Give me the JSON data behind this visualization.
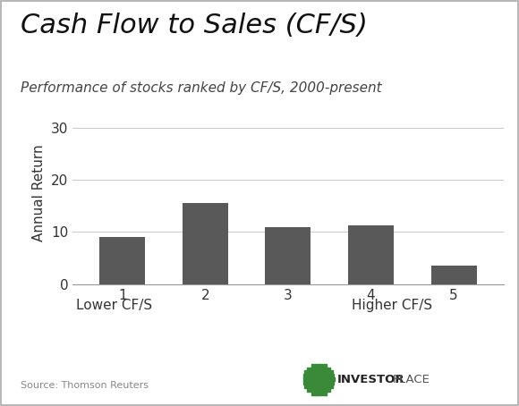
{
  "title": "Cash Flow to Sales (CF/S)",
  "subtitle": "Performance of stocks ranked by CF/S, 2000-present",
  "categories": [
    1,
    2,
    3,
    4,
    5
  ],
  "values": [
    9.0,
    15.5,
    11.0,
    11.2,
    3.5
  ],
  "bar_color": "#595959",
  "ylabel": "Annual Return",
  "ylim": [
    0,
    35
  ],
  "yticks": [
    0,
    10,
    20,
    30
  ],
  "xlabel_lower": "Lower CF/S",
  "xlabel_higher": "Higher CF/S",
  "source_text": "Source: Thomson Reuters",
  "background_color": "#ffffff",
  "title_fontsize": 22,
  "subtitle_fontsize": 11,
  "ylabel_fontsize": 11,
  "tick_fontsize": 11,
  "source_fontsize": 8,
  "grid_color": "#cccccc",
  "bar_width": 0.55
}
